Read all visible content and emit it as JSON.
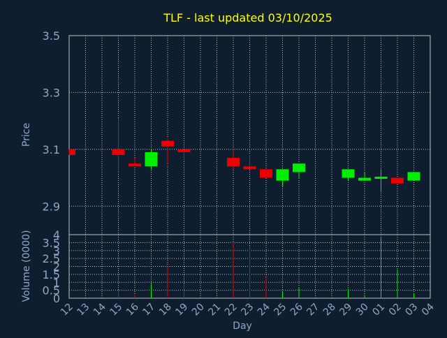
{
  "chart_data": [
    {
      "type": "candlestick",
      "title": "TLF - last updated 03/10/2025",
      "ylabel": "Price",
      "ylim": [
        2.8,
        3.5
      ],
      "yticks": [
        "3.5",
        "3.3",
        "3.1",
        "2.9"
      ],
      "grid": true,
      "candles": [
        {
          "day": "12",
          "open": 3.1,
          "high": 3.1,
          "low": 3.08,
          "close": 3.08
        },
        {
          "day": "15",
          "open": 3.1,
          "high": 3.21,
          "low": 3.02,
          "close": 3.08
        },
        {
          "day": "16",
          "open": 3.05,
          "high": 3.07,
          "low": 3.04,
          "close": 3.04
        },
        {
          "day": "17",
          "open": 3.04,
          "high": 3.1,
          "low": 3.03,
          "close": 3.09
        },
        {
          "day": "18",
          "open": 3.13,
          "high": 3.14,
          "low": 3.05,
          "close": 3.11
        },
        {
          "day": "19",
          "open": 3.1,
          "high": 3.1,
          "low": 3.06,
          "close": 3.09
        },
        {
          "day": "22",
          "open": 3.07,
          "high": 3.1,
          "low": 3.03,
          "close": 3.04
        },
        {
          "day": "23",
          "open": 3.04,
          "high": 3.08,
          "low": 3.03,
          "close": 3.03
        },
        {
          "day": "24",
          "open": 3.03,
          "high": 3.03,
          "low": 3.0,
          "close": 3.0
        },
        {
          "day": "25",
          "open": 2.99,
          "high": 3.03,
          "low": 2.97,
          "close": 3.03
        },
        {
          "day": "26",
          "open": 3.02,
          "high": 3.05,
          "low": 3.0,
          "close": 3.05
        },
        {
          "day": "29",
          "open": 3.0,
          "high": 3.03,
          "low": 2.99,
          "close": 3.03
        },
        {
          "day": "30",
          "open": 2.99,
          "high": 3.02,
          "low": 2.99,
          "close": 3.0
        },
        {
          "day": "01",
          "open": 3.0,
          "high": 3.03,
          "low": 2.95,
          "close": 3.0
        },
        {
          "day": "02",
          "open": 3.0,
          "high": 3.0,
          "low": 2.98,
          "close": 2.98
        },
        {
          "day": "03",
          "open": 2.99,
          "high": 3.02,
          "low": 2.99,
          "close": 3.02
        }
      ],
      "up_color": "#00ee00",
      "down_color": "#ee0000"
    },
    {
      "type": "bar",
      "ylabel": "Volume (0000)",
      "xlabel": "Day",
      "ylim": [
        0,
        4
      ],
      "yticks": [
        "4",
        "3.5",
        "3",
        "2.5",
        "2",
        "1.5",
        "1",
        "0.5",
        "0"
      ],
      "x_tick_labels": [
        "12",
        "13",
        "14",
        "15",
        "16",
        "17",
        "18",
        "19",
        "20",
        "21",
        "22",
        "23",
        "24",
        "25",
        "26",
        "27",
        "28",
        "29",
        "30",
        "01",
        "02",
        "03",
        "04"
      ],
      "bars": [
        {
          "day": "15",
          "value": 0.5,
          "color": "#ee0000"
        },
        {
          "day": "16",
          "value": 0.2,
          "color": "#ee0000"
        },
        {
          "day": "17",
          "value": 0.9,
          "color": "#00ee00"
        },
        {
          "day": "18",
          "value": 2.0,
          "color": "#ee0000"
        },
        {
          "day": "19",
          "value": 0.9,
          "color": "#ee0000"
        },
        {
          "day": "22",
          "value": 3.5,
          "color": "#ee0000"
        },
        {
          "day": "23",
          "value": 3.3,
          "color": "#ee0000"
        },
        {
          "day": "24",
          "value": 1.3,
          "color": "#ee0000"
        },
        {
          "day": "25",
          "value": 0.4,
          "color": "#00ee00"
        },
        {
          "day": "26",
          "value": 0.7,
          "color": "#00ee00"
        },
        {
          "day": "29",
          "value": 0.6,
          "color": "#00ee00"
        },
        {
          "day": "30",
          "value": 0.2,
          "color": "#00ee00"
        },
        {
          "day": "01",
          "value": 3.8,
          "color": "#00ee00"
        },
        {
          "day": "02",
          "value": 1.8,
          "color": "#00ee00"
        },
        {
          "day": "03",
          "value": 0.3,
          "color": "#00ee00"
        }
      ]
    }
  ],
  "colors": {
    "background": "#0f1e2e",
    "title": "#ffff00",
    "axis_text": "#8fa8c8",
    "grid": "#c0c0c0"
  }
}
